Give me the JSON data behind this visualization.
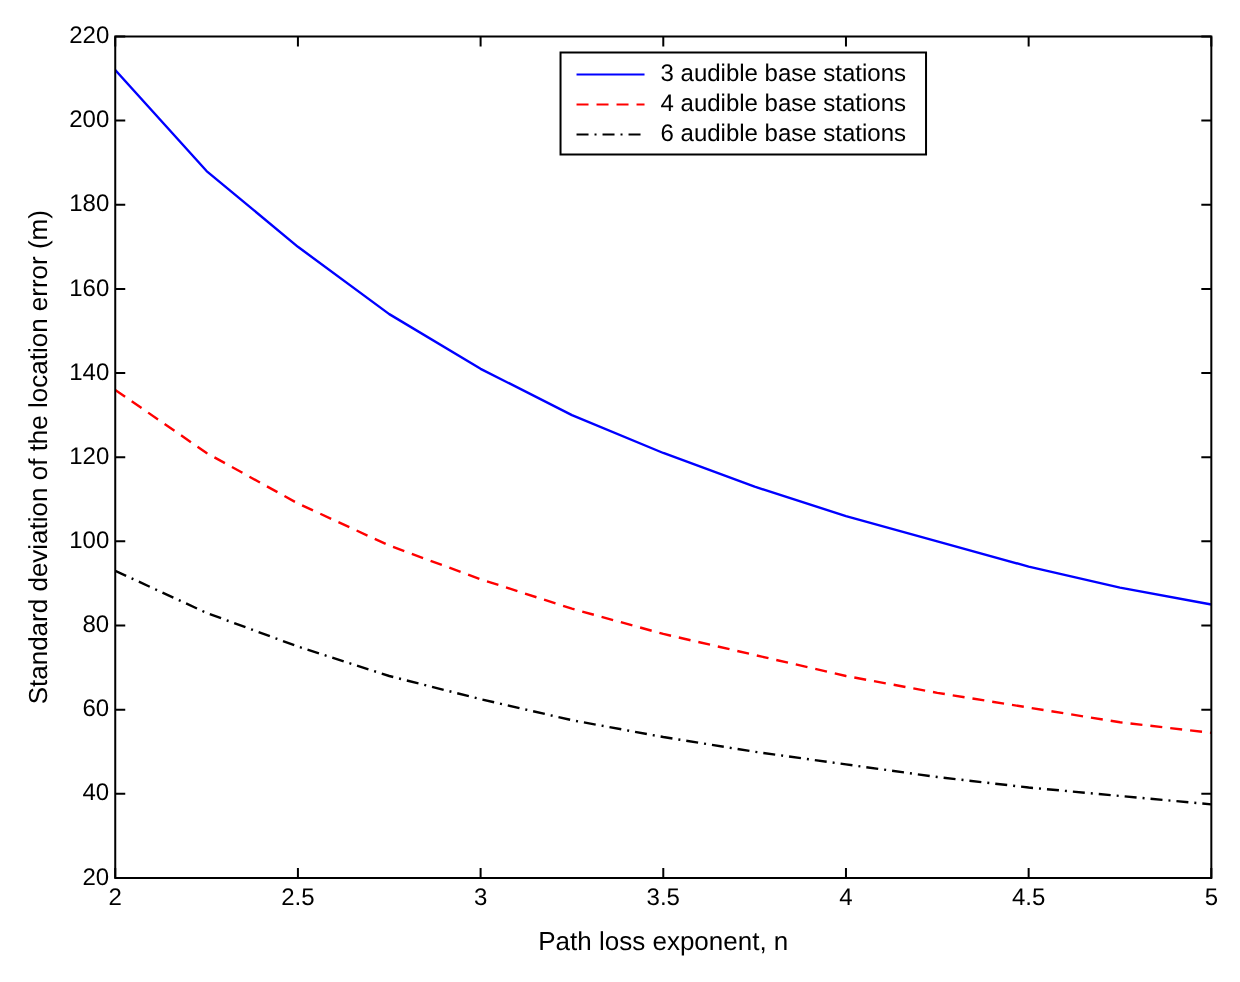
{
  "chart_data": {
    "type": "line",
    "xlabel": "Path loss exponent, n",
    "ylabel": "Standard deviation of the location error (m)",
    "x": [
      2,
      2.25,
      2.5,
      2.75,
      3,
      3.25,
      3.5,
      3.75,
      4,
      4.25,
      4.5,
      4.75,
      5
    ],
    "series": [
      {
        "name": "3 audible base stations",
        "color": "#0000ff",
        "line_style": "solid",
        "values": [
          212,
          188,
          170,
          154,
          141,
          130,
          121,
          113,
          106,
          100,
          94,
          89,
          85
        ]
      },
      {
        "name": "4 audible base stations",
        "color": "#ff0000",
        "line_style": "dashed",
        "values": [
          136,
          121,
          109,
          99,
          91,
          84,
          78,
          73,
          68,
          64,
          60.5,
          57,
          54.5
        ]
      },
      {
        "name": "6 audible base stations",
        "color": "#000000",
        "line_style": "dotted",
        "values": [
          93,
          83,
          75,
          68,
          62.5,
          57.5,
          53.5,
          50,
          47,
          44,
          41.5,
          39.5,
          37.5
        ]
      }
    ],
    "xlim": [
      2,
      5
    ],
    "xticks": [
      2,
      2.5,
      3,
      3.5,
      4,
      4.5,
      5
    ],
    "ylim": [
      20,
      220
    ],
    "yticks": [
      20,
      40,
      60,
      80,
      100,
      120,
      140,
      160,
      180,
      200,
      220
    ],
    "grid": false,
    "legend": "top",
    "marker": "none"
  }
}
